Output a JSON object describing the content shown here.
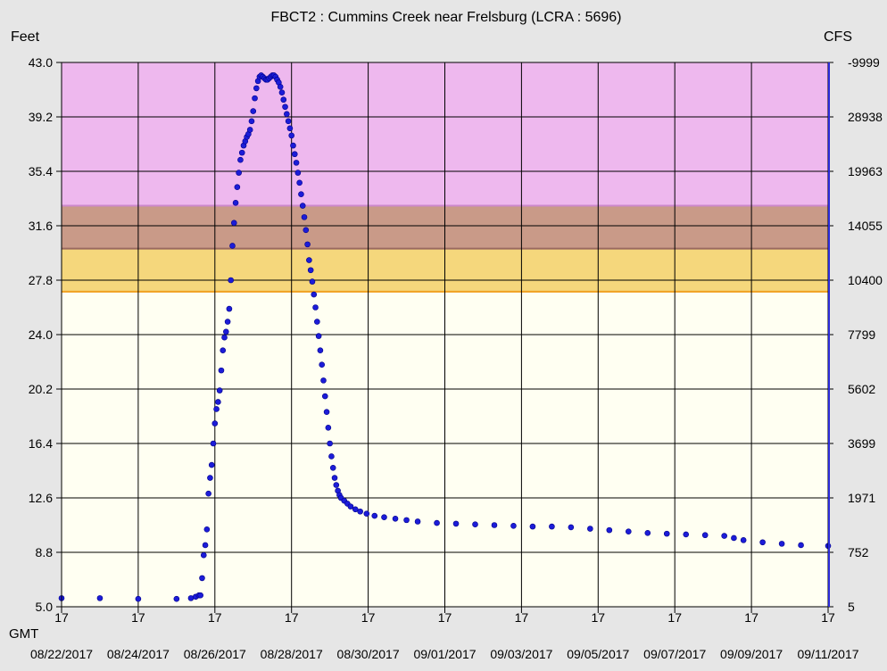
{
  "chart_data": {
    "type": "scatter",
    "title": "FBCT2  :  Cummins Creek near Frelsburg (LCRA : 5696)",
    "ylabel": "Feet",
    "y2label": "CFS",
    "xlabel_prefix": "GMT",
    "ylim": [
      5.0,
      43.0
    ],
    "y_ticks": [
      "43.0",
      "39.2",
      "35.4",
      "31.6",
      "27.8",
      "24.0",
      "20.2",
      "16.4",
      "12.6",
      "8.8",
      "5.0"
    ],
    "y2_ticks": [
      "-9999",
      "28938",
      "19963",
      "14055",
      "10400",
      "7799",
      "5602",
      "3699",
      "1971",
      "752",
      "5"
    ],
    "x_ticks": [
      {
        "top": "17",
        "bottom": "08/22/2017"
      },
      {
        "top": "17",
        "bottom": "08/24/2017"
      },
      {
        "top": "17",
        "bottom": "08/26/2017"
      },
      {
        "top": "17",
        "bottom": "08/28/2017"
      },
      {
        "top": "17",
        "bottom": "08/30/2017"
      },
      {
        "top": "17",
        "bottom": "09/01/2017"
      },
      {
        "top": "17",
        "bottom": "09/03/2017"
      },
      {
        "top": "17",
        "bottom": "09/05/2017"
      },
      {
        "top": "17",
        "bottom": "09/07/2017"
      },
      {
        "top": "17",
        "bottom": "09/09/2017"
      },
      {
        "top": "17",
        "bottom": "09/11/2017"
      }
    ],
    "xlim": [
      "2017-08-22 17:00",
      "2017-09-11 17:00"
    ],
    "bands": [
      {
        "from": 27.0,
        "to": 30.0,
        "color": "#f5d77c",
        "edge": "#f0a020"
      },
      {
        "from": 30.0,
        "to": 33.0,
        "color": "#c99a88",
        "edge": "#9a6a60"
      },
      {
        "from": 33.0,
        "to": 43.0,
        "color": "#eeb8ee",
        "edge": "#cc88cc"
      }
    ],
    "background_color": "#fffff2",
    "marker_color": "#1c1cd8",
    "grid": true,
    "series": [
      {
        "points": [
          [
            "2017-08-22 17:00",
            5.6
          ],
          [
            "2017-08-23 17:00",
            5.6
          ],
          [
            "2017-08-24 17:00",
            5.55
          ],
          [
            "2017-08-25 17:00",
            5.55
          ],
          [
            "2017-08-26 02:00",
            5.6
          ],
          [
            "2017-08-26 05:00",
            5.7
          ],
          [
            "2017-08-26 07:00",
            5.8
          ],
          [
            "2017-08-26 08:00",
            5.8
          ],
          [
            "2017-08-26 09:00",
            7.0
          ],
          [
            "2017-08-26 10:00",
            8.6
          ],
          [
            "2017-08-26 11:00",
            9.3
          ],
          [
            "2017-08-26 12:00",
            10.4
          ],
          [
            "2017-08-26 13:00",
            12.9
          ],
          [
            "2017-08-26 14:00",
            14.0
          ],
          [
            "2017-08-26 15:00",
            14.9
          ],
          [
            "2017-08-26 16:00",
            16.4
          ],
          [
            "2017-08-26 17:00",
            17.8
          ],
          [
            "2017-08-26 18:00",
            18.8
          ],
          [
            "2017-08-26 19:00",
            19.3
          ],
          [
            "2017-08-26 20:00",
            20.1
          ],
          [
            "2017-08-26 21:00",
            21.5
          ],
          [
            "2017-08-26 22:00",
            22.9
          ],
          [
            "2017-08-26 23:00",
            23.8
          ],
          [
            "2017-08-27 00:00",
            24.2
          ],
          [
            "2017-08-27 01:00",
            24.9
          ],
          [
            "2017-08-27 02:00",
            25.8
          ],
          [
            "2017-08-27 03:00",
            27.8
          ],
          [
            "2017-08-27 04:00",
            30.2
          ],
          [
            "2017-08-27 05:00",
            31.8
          ],
          [
            "2017-08-27 06:00",
            33.2
          ],
          [
            "2017-08-27 07:00",
            34.3
          ],
          [
            "2017-08-27 08:00",
            35.3
          ],
          [
            "2017-08-27 09:00",
            36.2
          ],
          [
            "2017-08-27 10:00",
            36.7
          ],
          [
            "2017-08-27 11:00",
            37.2
          ],
          [
            "2017-08-27 12:00",
            37.5
          ],
          [
            "2017-08-27 13:00",
            37.8
          ],
          [
            "2017-08-27 14:00",
            38.0
          ],
          [
            "2017-08-27 15:00",
            38.3
          ],
          [
            "2017-08-27 16:00",
            38.9
          ],
          [
            "2017-08-27 17:00",
            39.6
          ],
          [
            "2017-08-27 18:00",
            40.5
          ],
          [
            "2017-08-27 19:00",
            41.2
          ],
          [
            "2017-08-27 20:00",
            41.7
          ],
          [
            "2017-08-27 21:00",
            42.0
          ],
          [
            "2017-08-27 22:00",
            42.1
          ],
          [
            "2017-08-27 23:00",
            42.0
          ],
          [
            "2017-08-28 00:00",
            41.9
          ],
          [
            "2017-08-28 01:00",
            41.8
          ],
          [
            "2017-08-28 02:00",
            41.8
          ],
          [
            "2017-08-28 03:00",
            41.9
          ],
          [
            "2017-08-28 04:00",
            42.0
          ],
          [
            "2017-08-28 05:00",
            42.1
          ],
          [
            "2017-08-28 06:00",
            42.1
          ],
          [
            "2017-08-28 07:00",
            42.0
          ],
          [
            "2017-08-28 08:00",
            41.8
          ],
          [
            "2017-08-28 09:00",
            41.6
          ],
          [
            "2017-08-28 10:00",
            41.3
          ],
          [
            "2017-08-28 11:00",
            40.9
          ],
          [
            "2017-08-28 12:00",
            40.4
          ],
          [
            "2017-08-28 13:00",
            39.9
          ],
          [
            "2017-08-28 14:00",
            39.4
          ],
          [
            "2017-08-28 15:00",
            38.9
          ],
          [
            "2017-08-28 16:00",
            38.4
          ],
          [
            "2017-08-28 17:00",
            37.9
          ],
          [
            "2017-08-28 18:00",
            37.2
          ],
          [
            "2017-08-28 19:00",
            36.6
          ],
          [
            "2017-08-28 20:00",
            36.0
          ],
          [
            "2017-08-28 21:00",
            35.3
          ],
          [
            "2017-08-28 22:00",
            34.6
          ],
          [
            "2017-08-28 23:00",
            33.8
          ],
          [
            "2017-08-29 00:00",
            33.0
          ],
          [
            "2017-08-29 01:00",
            32.2
          ],
          [
            "2017-08-29 02:00",
            31.3
          ],
          [
            "2017-08-29 03:00",
            30.3
          ],
          [
            "2017-08-29 04:00",
            29.2
          ],
          [
            "2017-08-29 05:00",
            28.5
          ],
          [
            "2017-08-29 06:00",
            27.7
          ],
          [
            "2017-08-29 07:00",
            26.8
          ],
          [
            "2017-08-29 08:00",
            25.9
          ],
          [
            "2017-08-29 09:00",
            24.9
          ],
          [
            "2017-08-29 10:00",
            23.9
          ],
          [
            "2017-08-29 11:00",
            22.9
          ],
          [
            "2017-08-29 12:00",
            21.9
          ],
          [
            "2017-08-29 13:00",
            20.8
          ],
          [
            "2017-08-29 14:00",
            19.7
          ],
          [
            "2017-08-29 15:00",
            18.6
          ],
          [
            "2017-08-29 16:00",
            17.5
          ],
          [
            "2017-08-29 17:00",
            16.4
          ],
          [
            "2017-08-29 18:00",
            15.5
          ],
          [
            "2017-08-29 19:00",
            14.7
          ],
          [
            "2017-08-29 20:00",
            14.0
          ],
          [
            "2017-08-29 21:00",
            13.5
          ],
          [
            "2017-08-29 22:00",
            13.1
          ],
          [
            "2017-08-29 23:00",
            12.8
          ],
          [
            "2017-08-30 00:00",
            12.6
          ],
          [
            "2017-08-30 02:00",
            12.4
          ],
          [
            "2017-08-30 04:00",
            12.2
          ],
          [
            "2017-08-30 06:00",
            12.0
          ],
          [
            "2017-08-30 09:00",
            11.8
          ],
          [
            "2017-08-30 12:00",
            11.65
          ],
          [
            "2017-08-30 16:00",
            11.5
          ],
          [
            "2017-08-30 21:00",
            11.35
          ],
          [
            "2017-08-31 03:00",
            11.25
          ],
          [
            "2017-08-31 10:00",
            11.15
          ],
          [
            "2017-08-31 17:00",
            11.05
          ],
          [
            "2017-09-01 00:00",
            10.95
          ],
          [
            "2017-09-01 12:00",
            10.85
          ],
          [
            "2017-09-02 00:00",
            10.8
          ],
          [
            "2017-09-02 12:00",
            10.75
          ],
          [
            "2017-09-03 00:00",
            10.7
          ],
          [
            "2017-09-03 12:00",
            10.65
          ],
          [
            "2017-09-04 00:00",
            10.6
          ],
          [
            "2017-09-04 12:00",
            10.6
          ],
          [
            "2017-09-05 00:00",
            10.55
          ],
          [
            "2017-09-05 12:00",
            10.45
          ],
          [
            "2017-09-06 00:00",
            10.35
          ],
          [
            "2017-09-06 12:00",
            10.25
          ],
          [
            "2017-09-07 00:00",
            10.15
          ],
          [
            "2017-09-07 12:00",
            10.1
          ],
          [
            "2017-09-08 00:00",
            10.05
          ],
          [
            "2017-09-08 12:00",
            10.0
          ],
          [
            "2017-09-09 00:00",
            9.95
          ],
          [
            "2017-09-09 06:00",
            9.8
          ],
          [
            "2017-09-09 12:00",
            9.65
          ],
          [
            "2017-09-10 00:00",
            9.5
          ],
          [
            "2017-09-10 12:00",
            9.4
          ],
          [
            "2017-09-11 00:00",
            9.3
          ],
          [
            "2017-09-11 17:00",
            9.25
          ]
        ]
      }
    ]
  }
}
